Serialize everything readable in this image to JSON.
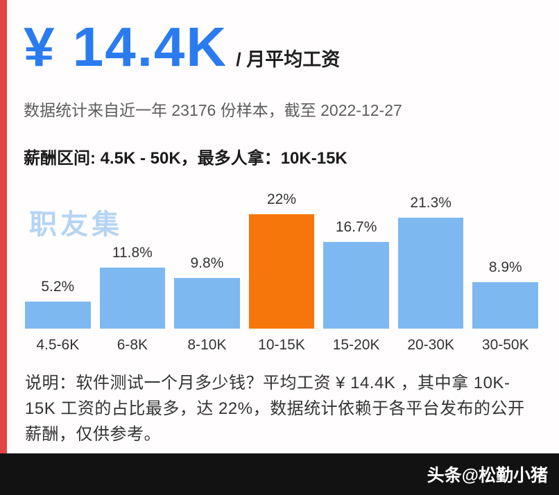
{
  "colors": {
    "accent_blue": "#2b7bf0",
    "bar_blue": "#7db9f0",
    "bar_orange": "#f7760c",
    "watermark_blue": "#b5d4f3",
    "left_strip_red": "#e24444",
    "footer_black": "#121212"
  },
  "header": {
    "salary": "¥ 14.4K",
    "salary_suffix": "/ 月平均工资",
    "subtitle": "数据统计来自近一年 23176 份样本，截至 2022-12-27",
    "range_line": "薪酬区间: 4.5K - 50K，最多人拿：10K-15K"
  },
  "watermark": "职友集",
  "chart_data": {
    "type": "bar",
    "categories": [
      "4.5-6K",
      "6-8K",
      "8-10K",
      "10-15K",
      "15-20K",
      "20-30K",
      "30-50K"
    ],
    "values": [
      5.2,
      11.8,
      9.8,
      22,
      16.7,
      21.3,
      8.9
    ],
    "labels": [
      "5.2%",
      "11.8%",
      "9.8%",
      "22%",
      "16.7%",
      "21.3%",
      "8.9%"
    ],
    "highlight_index": 3,
    "title": "",
    "xlabel": "",
    "ylabel": "",
    "ylim": [
      0,
      25
    ],
    "grid": false,
    "legend": "none",
    "bar_color": "#7db9f0",
    "highlight_color": "#f7760c"
  },
  "note": "说明：软件测试一个月多少钱？平均工资 ¥ 14.4K ，其中拿 10K-15K 工资的占比最多，达 22%，数据统计依赖于各平台发布的公开薪酬，仅供参考。",
  "footer": {
    "credit": "头条@松勤小猪"
  }
}
